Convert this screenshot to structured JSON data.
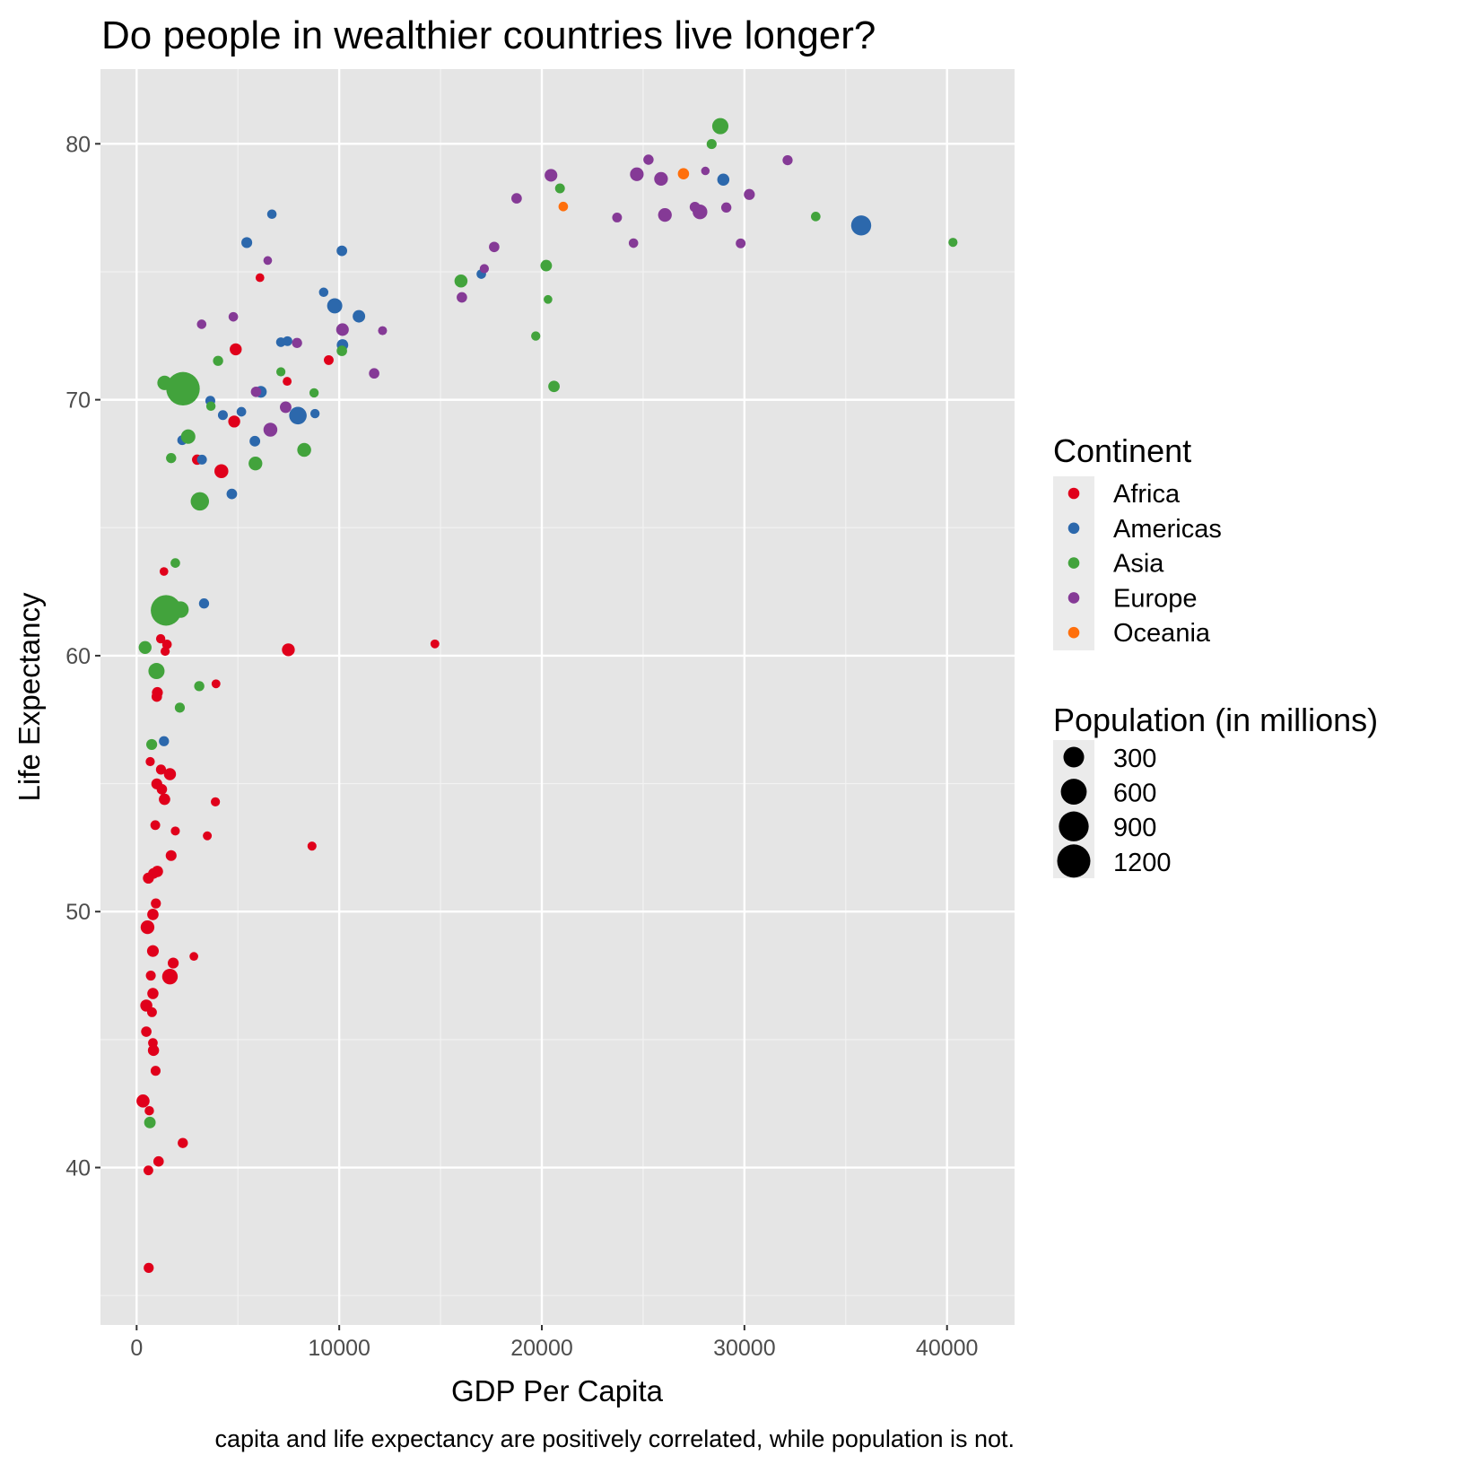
{
  "chart_data": {
    "type": "scatter",
    "title": "Do people in wealthier countries live longer?",
    "xlabel": "GDP Per Capita",
    "ylabel": "Life Expectancy",
    "caption": "capita and life expectancy are positively correlated, while population is not.",
    "xlim": [
      -1785,
      43334
    ],
    "ylim": [
      33.85,
      82.92
    ],
    "x_ticks": [
      0,
      10000,
      20000,
      30000,
      40000
    ],
    "x_tick_labels": [
      "0",
      "10000",
      "20000",
      "30000",
      "40000"
    ],
    "y_ticks": [
      40,
      50,
      60,
      70,
      80
    ],
    "y_tick_labels": [
      "40",
      "50",
      "60",
      "70",
      "80"
    ],
    "grid": true,
    "background": "#e5e5e5",
    "legend_position": "right",
    "color_legend": {
      "title": "Continent",
      "entries": [
        "Africa",
        "Americas",
        "Asia",
        "Europe",
        "Oceania"
      ]
    },
    "size_legend": {
      "title": "Population (in millions)",
      "values": [
        300,
        600,
        900,
        1200
      ],
      "labels": [
        "300",
        "600",
        "900",
        "1200"
      ]
    },
    "point_fields": [
      "gdp_per_capita",
      "life_expectancy",
      "population_millions"
    ],
    "series": [
      {
        "name": "Africa",
        "color": "#e0001b",
        "points": [
          [
            6087,
            74.77,
            0.7
          ],
          [
            9482,
            71.55,
            5
          ],
          [
            4891,
            71.97,
            29
          ],
          [
            7430,
            70.72,
            1.1
          ],
          [
            4817,
            69.15,
            28
          ],
          [
            2987,
            67.66,
            9
          ],
          [
            4183,
            67.21,
            64
          ],
          [
            1349,
            63.29,
            0.5
          ],
          [
            1187,
            60.66,
            2.5
          ],
          [
            1497,
            60.44,
            4
          ],
          [
            1408,
            60.17,
            2
          ],
          [
            7489,
            60.23,
            42
          ],
          [
            3917,
            58.9,
            1
          ],
          [
            1024,
            58.56,
            15
          ],
          [
            995,
            58.4,
            10
          ],
          [
            670,
            55.86,
            2
          ],
          [
            1201,
            55.55,
            7
          ],
          [
            1644,
            55.37,
            30
          ],
          [
            995,
            54.99,
            15
          ],
          [
            1246,
            54.78,
            10
          ],
          [
            1378,
            54.39,
            20
          ],
          [
            3888,
            54.29,
            2
          ],
          [
            921,
            53.38,
            5
          ],
          [
            1910,
            53.15,
            1.5
          ],
          [
            3489,
            52.96,
            1.2
          ],
          [
            8655,
            52.56,
            1.5
          ],
          [
            1703,
            52.19,
            14
          ],
          [
            1024,
            51.57,
            20
          ],
          [
            832,
            51.49,
            12
          ],
          [
            581,
            51.31,
            16
          ],
          [
            950,
            50.32,
            7
          ],
          [
            803,
            49.89,
            20
          ],
          [
            537,
            49.39,
            60
          ],
          [
            803,
            48.46,
            25
          ],
          [
            2825,
            48.25,
            0.6
          ],
          [
            1806,
            47.99,
            15
          ],
          [
            1644,
            47.46,
            106
          ],
          [
            699,
            47.5,
            6
          ],
          [
            803,
            46.8,
            18
          ],
          [
            478,
            46.33,
            30
          ],
          [
            758,
            46.07,
            5
          ],
          [
            478,
            45.31,
            10
          ],
          [
            803,
            44.87,
            4
          ],
          [
            832,
            44.58,
            18
          ],
          [
            936,
            43.78,
            6
          ],
          [
            316,
            42.6,
            47
          ],
          [
            626,
            42.22,
            3
          ],
          [
            2279,
            40.96,
            8
          ],
          [
            1083,
            40.24,
            10
          ],
          [
            581,
            39.89,
            5
          ],
          [
            596,
            36.08,
            7
          ],
          [
            14722,
            60.46,
            1.1
          ]
        ]
      },
      {
        "name": "Americas",
        "color": "#2c68ac",
        "points": [
          [
            6677,
            77.25,
            3.5
          ],
          [
            5437,
            76.14,
            14
          ],
          [
            10131,
            75.82,
            11
          ],
          [
            9231,
            74.2,
            3.2
          ],
          [
            9777,
            73.67,
            95
          ],
          [
            10972,
            73.26,
            36
          ],
          [
            10161,
            72.14,
            22
          ],
          [
            7120,
            72.25,
            4
          ],
          [
            7445,
            72.29,
            5
          ],
          [
            6131,
            70.31,
            25
          ],
          [
            3637,
            69.96,
            6
          ],
          [
            5172,
            69.53,
            4
          ],
          [
            4257,
            69.4,
            6
          ],
          [
            7961,
            69.38,
            168
          ],
          [
            8803,
            69.46,
            2.6
          ],
          [
            2249,
            68.42,
            5
          ],
          [
            5836,
            68.38,
            12
          ],
          [
            3223,
            67.66,
            6
          ],
          [
            4699,
            66.32,
            11
          ],
          [
            3327,
            62.04,
            7.7
          ],
          [
            1349,
            56.66,
            7.5
          ],
          [
            17013,
            74.91,
            3.8
          ],
          [
            28958,
            78.6,
            30
          ],
          [
            35762,
            76.81,
            272
          ]
        ]
      },
      {
        "name": "Asia",
        "color": "#42a33c",
        "points": [
          [
            10131,
            71.91,
            10
          ],
          [
            4020,
            71.52,
            8
          ],
          [
            7120,
            71.09,
            2
          ],
          [
            8758,
            70.27,
            2.6
          ],
          [
            1378,
            70.66,
            76
          ],
          [
            2289,
            70.43,
            1230
          ],
          [
            3666,
            69.75,
            3
          ],
          [
            2544,
            68.56,
            75
          ],
          [
            8271,
            68.04,
            63
          ],
          [
            1703,
            67.72,
            8
          ],
          [
            5865,
            67.51,
            60
          ],
          [
            3120,
            66.03,
            199
          ],
          [
            1910,
            63.62,
            4
          ],
          [
            1452,
            61.77,
            960
          ],
          [
            2161,
            61.8,
            135
          ],
          [
            419,
            60.32,
            43
          ],
          [
            980,
            59.4,
            123
          ],
          [
            3091,
            58.81,
            8
          ],
          [
            2131,
            57.97,
            7
          ],
          [
            744,
            56.53,
            15
          ],
          [
            655,
            41.76,
            22
          ],
          [
            20895,
            78.26,
            5.5
          ],
          [
            16010,
            74.64,
            46
          ],
          [
            20216,
            75.24,
            22
          ],
          [
            20305,
            73.92,
            0.6
          ],
          [
            19700,
            72.49,
            2.3
          ],
          [
            20600,
            70.52,
            21
          ],
          [
            28810,
            80.69,
            125
          ],
          [
            28382,
            79.99,
            6.5
          ],
          [
            33519,
            77.16,
            3.8
          ],
          [
            40293,
            76.15,
            1.8
          ]
        ]
      },
      {
        "name": "Europe",
        "color": "#853a96",
        "points": [
          [
            6471,
            75.44,
            0.6
          ],
          [
            10161,
            72.74,
            38.6
          ],
          [
            12138,
            72.7,
            1.4
          ],
          [
            11724,
            71.03,
            10
          ],
          [
            3209,
            72.95,
            3.4
          ],
          [
            4773,
            73.24,
            3.6
          ],
          [
            7917,
            72.22,
            8
          ],
          [
            5895,
            70.31,
            10
          ],
          [
            7356,
            69.71,
            22.5
          ],
          [
            6603,
            68.83,
            63
          ],
          [
            25264,
            79.38,
            8.9
          ],
          [
            24689,
            78.81,
            57.5
          ],
          [
            25884,
            78.63,
            58.6
          ],
          [
            26076,
            77.22,
            58.8
          ],
          [
            23714,
            77.12,
            5.1
          ],
          [
            24526,
            76.12,
            3.6
          ],
          [
            20452,
            78.77,
            39.9
          ],
          [
            18755,
            77.87,
            10.5
          ],
          [
            17648,
            75.97,
            10
          ],
          [
            17161,
            75.12,
            2
          ],
          [
            16054,
            74.0,
            10.3
          ],
          [
            28072,
            78.94,
            0.27
          ],
          [
            32131,
            79.36,
            7.2
          ],
          [
            30242,
            78.02,
            15.6
          ],
          [
            29105,
            77.51,
            8.1
          ],
          [
            27556,
            77.53,
            10.2
          ],
          [
            27807,
            77.34,
            82
          ],
          [
            29814,
            76.11,
            5.3
          ]
        ]
      },
      {
        "name": "Oceania",
        "color": "#ff6f0c",
        "points": [
          [
            26991,
            78.83,
            18.6
          ],
          [
            21058,
            77.55,
            3.7
          ]
        ]
      }
    ]
  }
}
